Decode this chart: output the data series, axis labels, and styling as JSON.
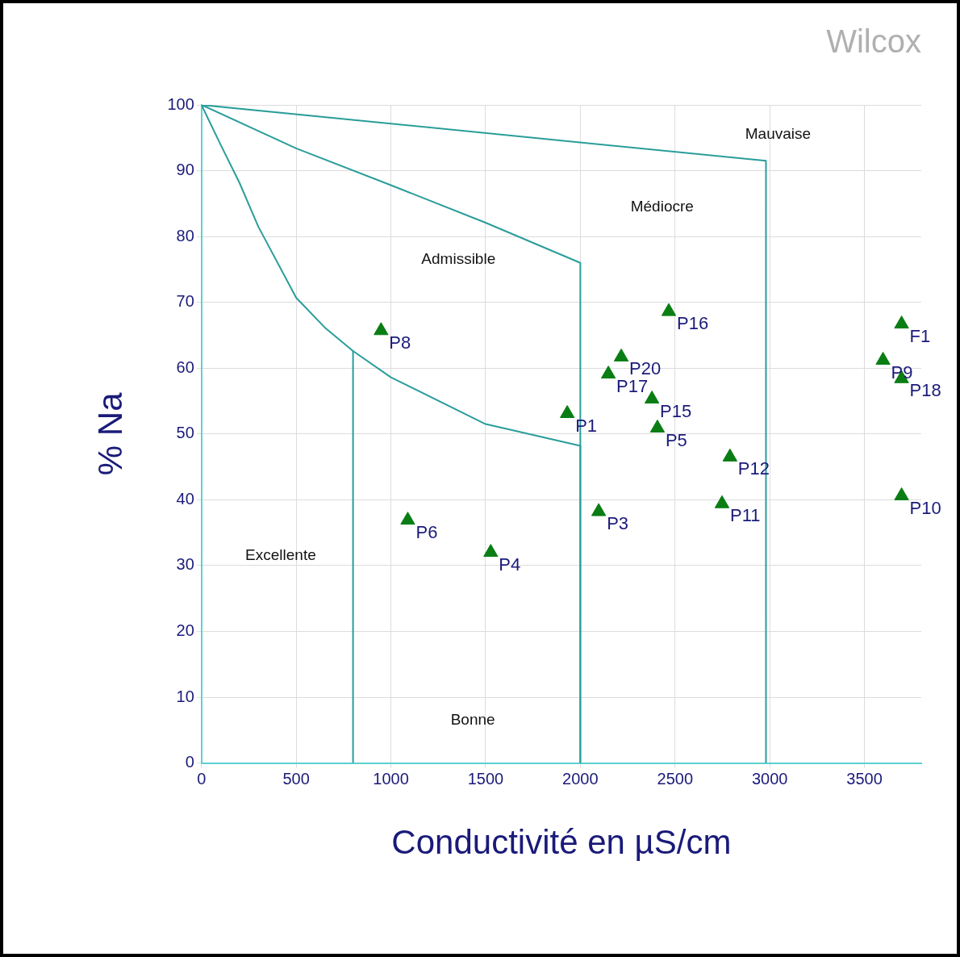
{
  "chart_data": {
    "type": "scatter",
    "title": "Wilcox",
    "xlabel": "Conductivité en µS/cm",
    "ylabel": "% Na",
    "xlim": [
      0,
      3800
    ],
    "ylim": [
      0,
      100
    ],
    "xticks": [
      0,
      500,
      1000,
      1500,
      2000,
      2500,
      3000,
      3500
    ],
    "yticks": [
      0,
      10,
      20,
      30,
      40,
      50,
      60,
      70,
      80,
      90,
      100
    ],
    "grid": true,
    "marker": "triangle",
    "series": [
      {
        "type": "line",
        "marker": "none",
        "color": "#2a9d9a",
        "x": [
          0,
          2980,
          2980
        ],
        "values": [
          100,
          91.5,
          0
        ]
      },
      {
        "type": "line",
        "marker": "none",
        "color": "#2a9d9a",
        "x": [
          0,
          500,
          1000,
          1500,
          2000,
          2000
        ],
        "values": [
          100,
          93.4,
          87.8,
          82.1,
          76,
          0
        ]
      },
      {
        "type": "line",
        "marker": "none",
        "color": "#2a9d9a",
        "x": [
          0,
          100,
          200,
          300,
          500,
          650,
          800,
          1000,
          1500,
          2000,
          2000
        ],
        "values": [
          100,
          94,
          88.2,
          81.5,
          70.7,
          66.2,
          62.6,
          58.6,
          51.5,
          48.2,
          0
        ]
      },
      {
        "type": "line",
        "marker": "none",
        "color": "#2a9d9a",
        "x": [
          800,
          800
        ],
        "values": [
          62.6,
          0
        ]
      },
      {
        "name": "P8",
        "color": "#0a7d14",
        "x": [
          948
        ],
        "values": [
          65.7
        ]
      },
      {
        "name": "P1",
        "color": "#0a7d14",
        "x": [
          1931
        ],
        "values": [
          53.1
        ]
      },
      {
        "name": "P16",
        "color": "#0a7d14",
        "x": [
          2467
        ],
        "values": [
          68.6
        ]
      },
      {
        "name": "P20",
        "color": "#0a7d14",
        "x": [
          2216
        ],
        "values": [
          61.7
        ]
      },
      {
        "name": "P17",
        "color": "#0a7d14",
        "x": [
          2148
        ],
        "values": [
          59.1
        ]
      },
      {
        "name": "P15",
        "color": "#0a7d14",
        "x": [
          2378
        ],
        "values": [
          55.3
        ]
      },
      {
        "name": "P5",
        "color": "#0a7d14",
        "x": [
          2407
        ],
        "values": [
          50.9
        ]
      },
      {
        "name": "P12",
        "color": "#0a7d14",
        "x": [
          2790
        ],
        "values": [
          46.5
        ]
      },
      {
        "name": "P11",
        "color": "#0a7d14",
        "x": [
          2748
        ],
        "values": [
          39.4
        ]
      },
      {
        "name": "P3",
        "color": "#0a7d14",
        "x": [
          2097
        ],
        "values": [
          38.2
        ]
      },
      {
        "name": "P6",
        "color": "#0a7d14",
        "x": [
          1089
        ],
        "values": [
          36.9
        ]
      },
      {
        "name": "P4",
        "color": "#0a7d14",
        "x": [
          1527
        ],
        "values": [
          32.0
        ]
      },
      {
        "name": "F1",
        "color": "#0a7d14",
        "x": [
          3696
        ],
        "values": [
          66.7
        ]
      },
      {
        "name": "P9",
        "color": "#0a7d14",
        "x": [
          3598
        ],
        "values": [
          61.2
        ]
      },
      {
        "name": "P18",
        "color": "#0a7d14",
        "x": [
          3696
        ],
        "values": [
          58.4
        ]
      },
      {
        "name": "P10",
        "color": "#0a7d14",
        "x": [
          3696
        ],
        "values": [
          40.6
        ]
      }
    ],
    "annotations": [
      "Mauvaise",
      "Médiocre",
      "Admissible",
      "Excellente",
      "Bonne"
    ]
  }
}
